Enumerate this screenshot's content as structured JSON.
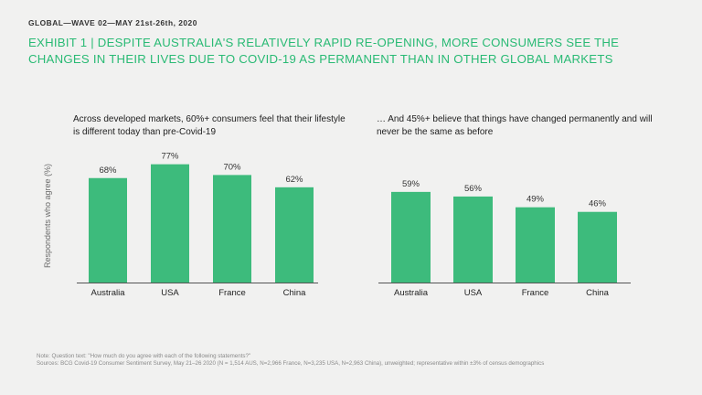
{
  "header": {
    "kicker": "GLOBAL—WAVE  02—MAY 21st-26th, 2020",
    "headline": "EXHIBIT 1 | DESPITE AUSTRALIA'S RELATIVELY RAPID RE-OPENING, MORE CONSUMERS SEE THE CHANGES IN THEIR LIVES DUE TO COVID-19 AS PERMANENT THAN IN OTHER GLOBAL MARKETS"
  },
  "colors": {
    "bar": "#3dbb7c",
    "headline": "#29ba74",
    "axis": "#555555"
  },
  "chart_data": [
    {
      "type": "bar",
      "title": "Across developed markets, 60%+ consumers feel that their lifestyle is different today than pre-Covid-19",
      "ylabel": "Respondents who agree (%)",
      "categories": [
        "Australia",
        "USA",
        "France",
        "China"
      ],
      "values": [
        68,
        77,
        70,
        62
      ],
      "labels": [
        "68%",
        "77%",
        "70%",
        "62%"
      ],
      "ylim": [
        0,
        100
      ]
    },
    {
      "type": "bar",
      "title": "… And 45%+ believe that things have changed permanently and will never be the same as before",
      "categories": [
        "Australia",
        "USA",
        "France",
        "China"
      ],
      "values": [
        59,
        56,
        49,
        46
      ],
      "labels": [
        "59%",
        "56%",
        "49%",
        "46%"
      ],
      "ylim": [
        0,
        100
      ]
    }
  ],
  "footer": {
    "note": "Note: Question text: \"How much do you agree with each of the following statements?\"",
    "sources": "Sources: BCG Covid-19 Consumer Sentiment Survey, May 21–26 2020 (N = 1,514 AUS, N=2,966 France, N=3,235 USA, N=2,963 China), unweighted; representative within ±3% of census demographics"
  }
}
